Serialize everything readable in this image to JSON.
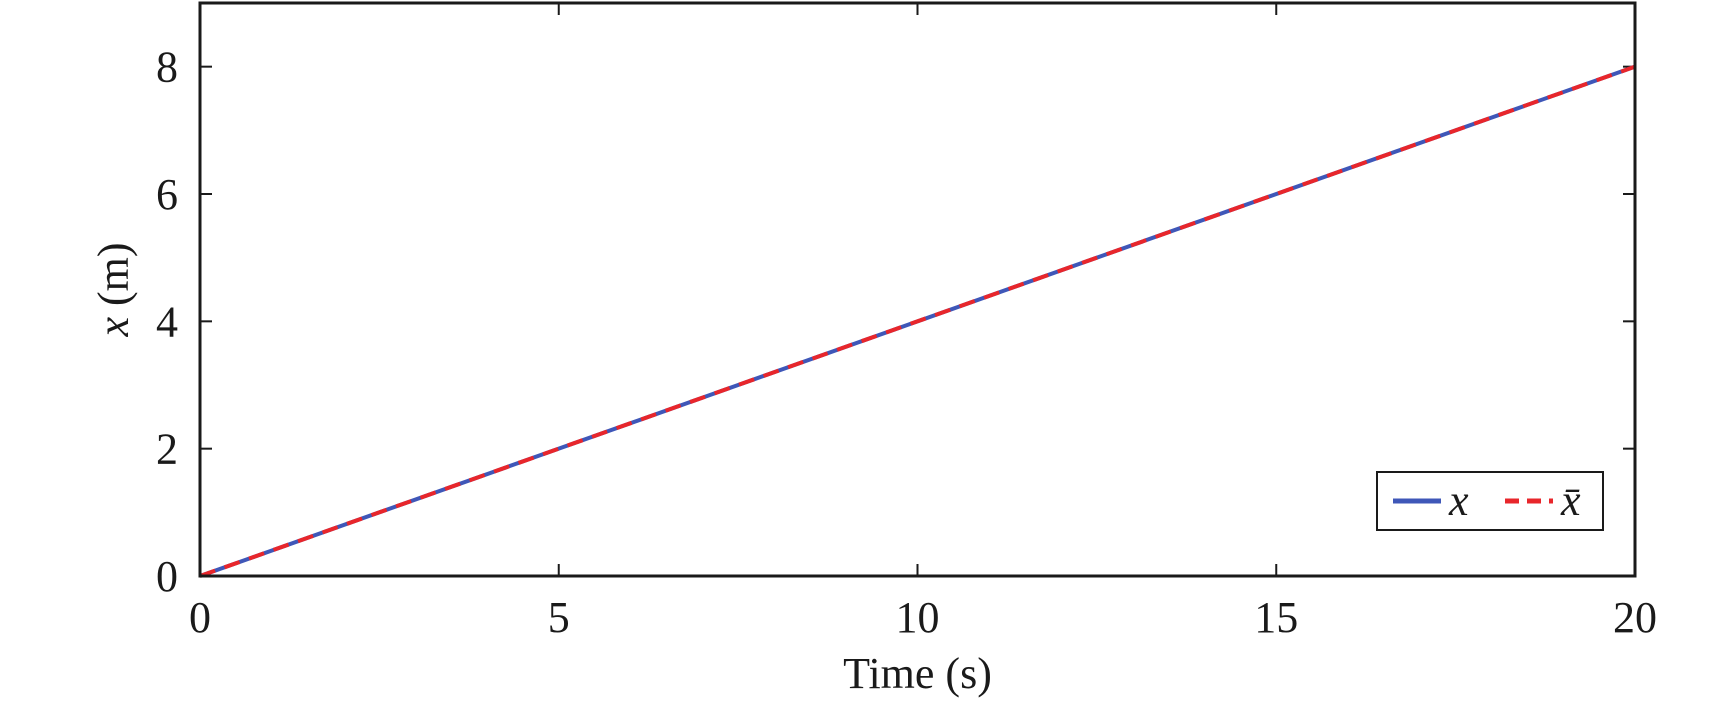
{
  "chart_data": {
    "type": "line",
    "xlabel": "Time (s)",
    "ylabel_symbol": "x",
    "ylabel_unit": " (m)",
    "xlim": [
      0,
      20
    ],
    "ylim": [
      0,
      9
    ],
    "xticks": [
      0,
      5,
      10,
      15,
      20
    ],
    "yticks": [
      0,
      2,
      4,
      6,
      8
    ],
    "grid": false,
    "legend_position": "bottom-right",
    "series": [
      {
        "name": "x",
        "style": "solid",
        "color": "#3f57b8",
        "x": [
          0,
          20
        ],
        "y": [
          0,
          8
        ]
      },
      {
        "name": "x̄",
        "style": "dashed",
        "color": "#e8262b",
        "x": [
          0,
          20
        ],
        "y": [
          0,
          8
        ]
      }
    ]
  }
}
